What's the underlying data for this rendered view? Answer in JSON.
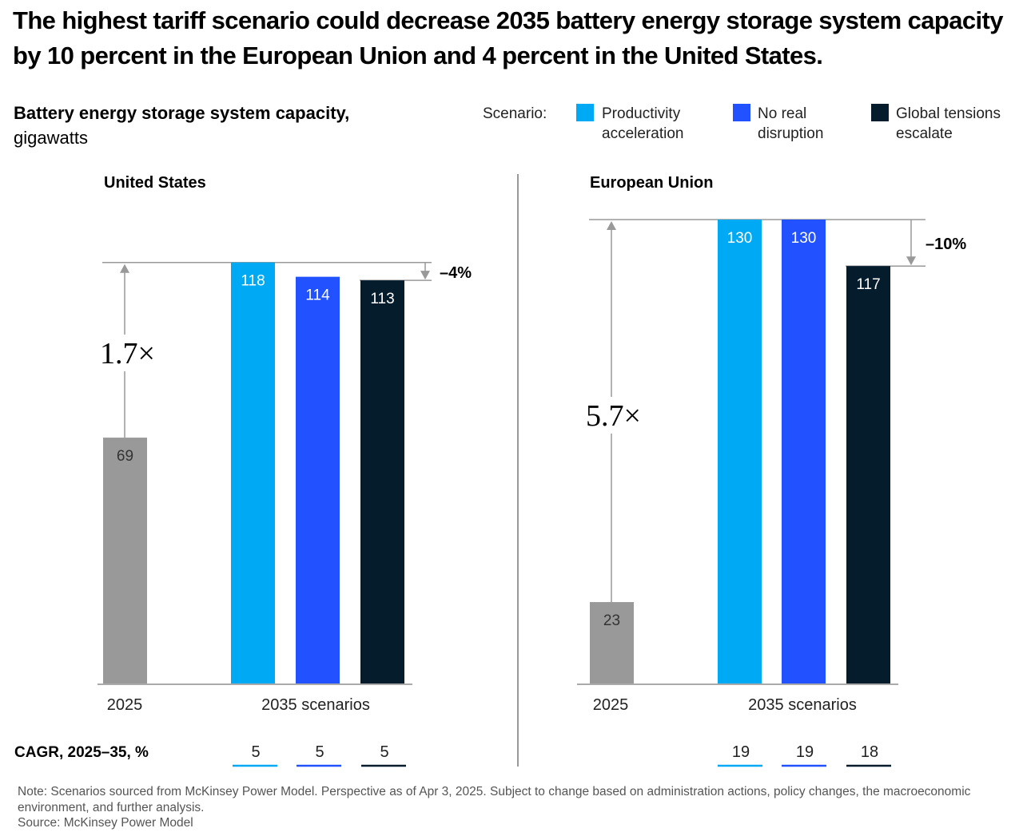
{
  "title": "The highest tariff scenario could decrease 2035 battery energy storage system capacity by 10 percent in the European Union and 4 percent in the United States.",
  "subtitle": {
    "bold": "Battery energy storage system capacity,",
    "unit": "gigawatts"
  },
  "legend": {
    "label": "Scenario:",
    "items": [
      {
        "line1": "Productivity",
        "line2": "acceleration",
        "color": "#00A9F4"
      },
      {
        "line1": "No real",
        "line2": "disruption",
        "color": "#2251FF"
      },
      {
        "line1": "Global tensions",
        "line2": "escalate",
        "color": "#051C2C"
      }
    ]
  },
  "chart_data": [
    {
      "type": "bar",
      "title": "United States",
      "categories": [
        "2025",
        "Productivity acceleration",
        "No real disruption",
        "Global tensions escalate"
      ],
      "values": [
        69,
        118,
        114,
        113
      ],
      "colors": [
        "#999999",
        "#00A9F4",
        "#2251FF",
        "#051C2C"
      ],
      "labels": [
        "69",
        "118",
        "114",
        "113"
      ],
      "x_labels": [
        "2025",
        "2035 scenarios"
      ],
      "growth_annotation": "1.7×",
      "change_annotation": "–4%",
      "cagr": [
        "5",
        "5",
        "5"
      ],
      "ylim": [
        0,
        130
      ]
    },
    {
      "type": "bar",
      "title": "European Union",
      "categories": [
        "2025",
        "Productivity acceleration",
        "No real disruption",
        "Global tensions escalate"
      ],
      "values": [
        23,
        130,
        130,
        117
      ],
      "colors": [
        "#999999",
        "#00A9F4",
        "#2251FF",
        "#051C2C"
      ],
      "labels": [
        "23",
        "130",
        "130",
        "117"
      ],
      "x_labels": [
        "2025",
        "2035 scenarios"
      ],
      "growth_annotation": "5.7×",
      "change_annotation": "–10%",
      "cagr": [
        "19",
        "19",
        "18"
      ],
      "ylim": [
        0,
        130
      ]
    }
  ],
  "cagr_label": "CAGR, 2025–35, %",
  "note": "Note: Scenarios sourced from McKinsey Power Model. Perspective as of Apr 3, 2025. Subject to change based on administration actions, policy changes, the macroeconomic environment, and further analysis.",
  "source": "Source: McKinsey Power Model"
}
